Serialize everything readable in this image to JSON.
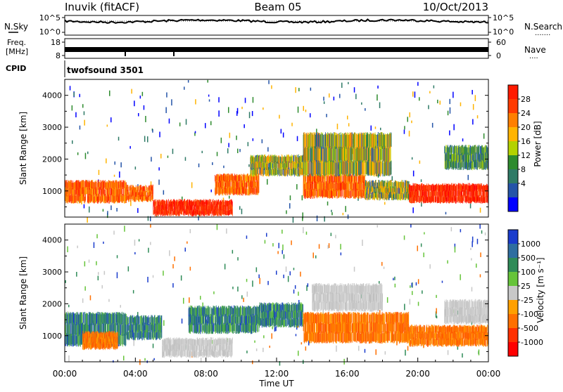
{
  "header": {
    "station": "Inuvik (fitACF)",
    "beam": "Beam 05",
    "date": "10/Oct/2013"
  },
  "noise_panel": {
    "left_label": "N.Sky",
    "left_ticks": [
      "10^5",
      "10^0"
    ],
    "right_ticks": [
      "10^5",
      "10^0"
    ],
    "right_label": "N.Search",
    "right_label_marker": "......."
  },
  "freq_panel": {
    "left_label_top": "Freq.",
    "left_label_unit": "[MHz]",
    "left_ticks": [
      "18",
      "8"
    ],
    "right_ticks": [
      "60",
      "0"
    ],
    "right_label": "Nave",
    "right_label_marker": "...."
  },
  "cpid_panel": {
    "left_label": "CPID",
    "program": "twofsound 3501"
  },
  "chart_data": [
    {
      "type": "heatmap",
      "name": "power",
      "ylabel": "Slant Range [km]",
      "ylim": [
        180,
        4500
      ],
      "yticks": [
        1000,
        2000,
        3000,
        4000
      ],
      "xlim": [
        0,
        24
      ],
      "colorbar": {
        "label": "Power [dB]",
        "ticks": [
          "28",
          "24",
          "20",
          "16",
          "12",
          "8",
          "4"
        ],
        "colors": [
          "#ff1a00",
          "#ff3b00",
          "#ff7f00",
          "#ffb400",
          "#b3d200",
          "#2e8b2e",
          "#2e7a66",
          "#2454a8",
          "#0000ff"
        ]
      },
      "bands": [
        {
          "x0": 0.0,
          "x1": 3.5,
          "y0": 650,
          "y1": 1300,
          "level": "high"
        },
        {
          "x0": 3.5,
          "x1": 5.0,
          "y0": 700,
          "y1": 1150,
          "level": "high"
        },
        {
          "x0": 5.0,
          "x1": 9.5,
          "y0": 250,
          "y1": 700,
          "level": "very-high"
        },
        {
          "x0": 8.5,
          "x1": 11.0,
          "y0": 900,
          "y1": 1500,
          "level": "high"
        },
        {
          "x0": 10.5,
          "x1": 13.5,
          "y0": 1500,
          "y1": 2100,
          "level": "mid"
        },
        {
          "x0": 13.5,
          "x1": 17.0,
          "y0": 800,
          "y1": 1500,
          "level": "high"
        },
        {
          "x0": 17.0,
          "x1": 19.5,
          "y0": 750,
          "y1": 1300,
          "level": "mid"
        },
        {
          "x0": 19.5,
          "x1": 24.0,
          "y0": 650,
          "y1": 1200,
          "level": "very-high"
        },
        {
          "x0": 13.5,
          "x1": 18.5,
          "y0": 1500,
          "y1": 2800,
          "level": "mid"
        },
        {
          "x0": 21.5,
          "x1": 24.0,
          "y0": 1700,
          "y1": 2400,
          "level": "low"
        }
      ]
    },
    {
      "type": "heatmap",
      "name": "velocity",
      "xlabel": "Time UT",
      "ylabel": "Slant Range [km]",
      "ylim": [
        180,
        4500
      ],
      "yticks": [
        1000,
        2000,
        3000,
        4000
      ],
      "xlim": [
        0,
        24
      ],
      "xticks": [
        "00:00",
        "04:00",
        "08:00",
        "12:00",
        "16:00",
        "20:00",
        "00:00"
      ],
      "colorbar": {
        "label": "Velocity [m s⁻¹]",
        "ticks": [
          "1000",
          "500",
          "100",
          "25",
          "-25",
          "-100",
          "-500",
          "-1000"
        ],
        "colors": [
          "#1a3ccc",
          "#2e6ea0",
          "#2e8b57",
          "#66c43a",
          "#c8c8c8",
          "#ffa000",
          "#ff7000",
          "#ff3000",
          "#ff0000"
        ]
      },
      "bands": [
        {
          "x0": 0.0,
          "x1": 3.5,
          "y0": 700,
          "y1": 1700,
          "level": "green"
        },
        {
          "x0": 1.0,
          "x1": 3.0,
          "y0": 600,
          "y1": 1100,
          "level": "orange"
        },
        {
          "x0": 3.5,
          "x1": 5.5,
          "y0": 900,
          "y1": 1600,
          "level": "green"
        },
        {
          "x0": 5.5,
          "x1": 9.5,
          "y0": 350,
          "y1": 900,
          "level": "grey"
        },
        {
          "x0": 7.0,
          "x1": 11.0,
          "y0": 1100,
          "y1": 1900,
          "level": "green"
        },
        {
          "x0": 11.0,
          "x1": 13.5,
          "y0": 1300,
          "y1": 2000,
          "level": "green"
        },
        {
          "x0": 13.5,
          "x1": 19.5,
          "y0": 800,
          "y1": 1700,
          "level": "orange"
        },
        {
          "x0": 14.0,
          "x1": 18.0,
          "y0": 1800,
          "y1": 2600,
          "level": "grey"
        },
        {
          "x0": 19.5,
          "x1": 24.0,
          "y0": 700,
          "y1": 1300,
          "level": "orange"
        },
        {
          "x0": 21.5,
          "x1": 24.0,
          "y0": 1400,
          "y1": 2100,
          "level": "grey"
        }
      ]
    }
  ]
}
